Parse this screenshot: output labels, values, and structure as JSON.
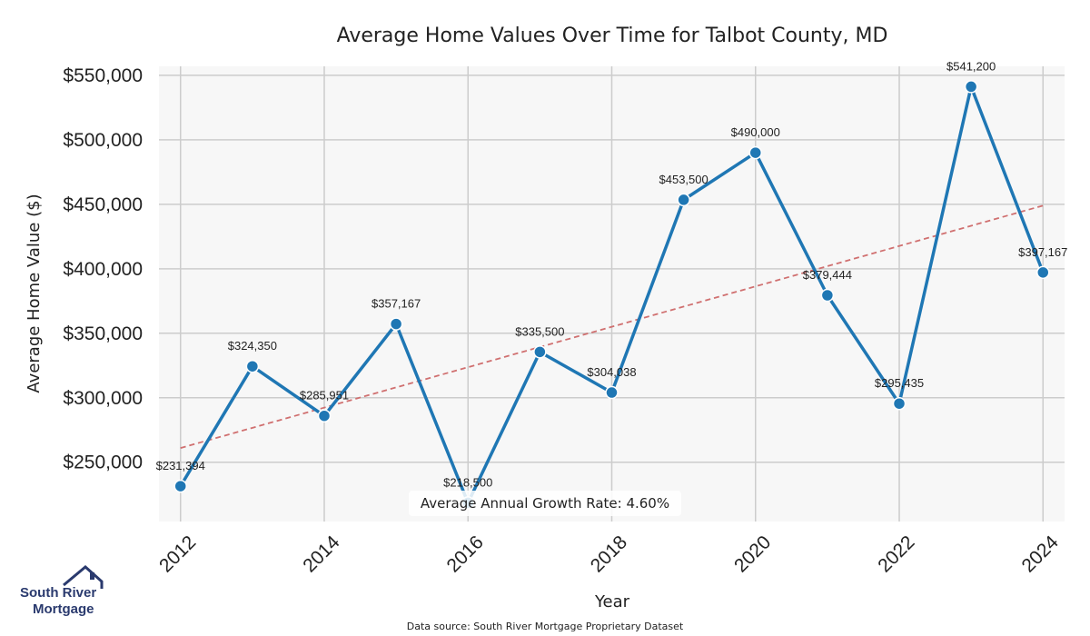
{
  "chart_data": {
    "type": "line",
    "title": "Average Home Values Over Time for Talbot County, MD",
    "xlabel": "Year",
    "ylabel": "Average Home Value ($)",
    "x": [
      2012,
      2013,
      2014,
      2015,
      2016,
      2017,
      2018,
      2019,
      2020,
      2021,
      2022,
      2023,
      2024
    ],
    "series": [
      {
        "values": [
          231394,
          324350,
          285951,
          357167,
          218500,
          335500,
          304038,
          453500,
          490000,
          379444,
          295435,
          541200,
          397167
        ],
        "labels": [
          "$231,394",
          "$324,350",
          "$285,951",
          "$357,167",
          "$218,500",
          "$335,500",
          "$304,038",
          "$453,500",
          "$490,000",
          "$379,444",
          "$295,435",
          "$541,200",
          "$397,167"
        ]
      }
    ],
    "trendline": {
      "start": [
        2012,
        261000
      ],
      "end": [
        2024,
        449000
      ]
    },
    "xlim": [
      2011.7,
      2024.3
    ],
    "ylim": [
      204000,
      557000
    ],
    "xticks": [
      2012,
      2014,
      2016,
      2018,
      2020,
      2022,
      2024
    ],
    "xtick_labels": [
      "2012",
      "2014",
      "2016",
      "2018",
      "2020",
      "2022",
      "2024"
    ],
    "yticks": [
      250000,
      300000,
      350000,
      400000,
      450000,
      500000,
      550000
    ],
    "ytick_labels": [
      "$250,000",
      "$300,000",
      "$350,000",
      "$400,000",
      "$450,000",
      "$500,000",
      "$550,000"
    ],
    "grid": true,
    "annotation": "Average Annual Growth Rate: 4.60%",
    "source": "Data source: South River Mortgage Proprietary Dataset",
    "colors": {
      "line": "#1f77b4",
      "trend": "#d07070",
      "plot_bg": "#f7f7f7",
      "grid": "#cccccc"
    }
  },
  "logo": {
    "line1": "South River",
    "line2": "Mortgage"
  }
}
